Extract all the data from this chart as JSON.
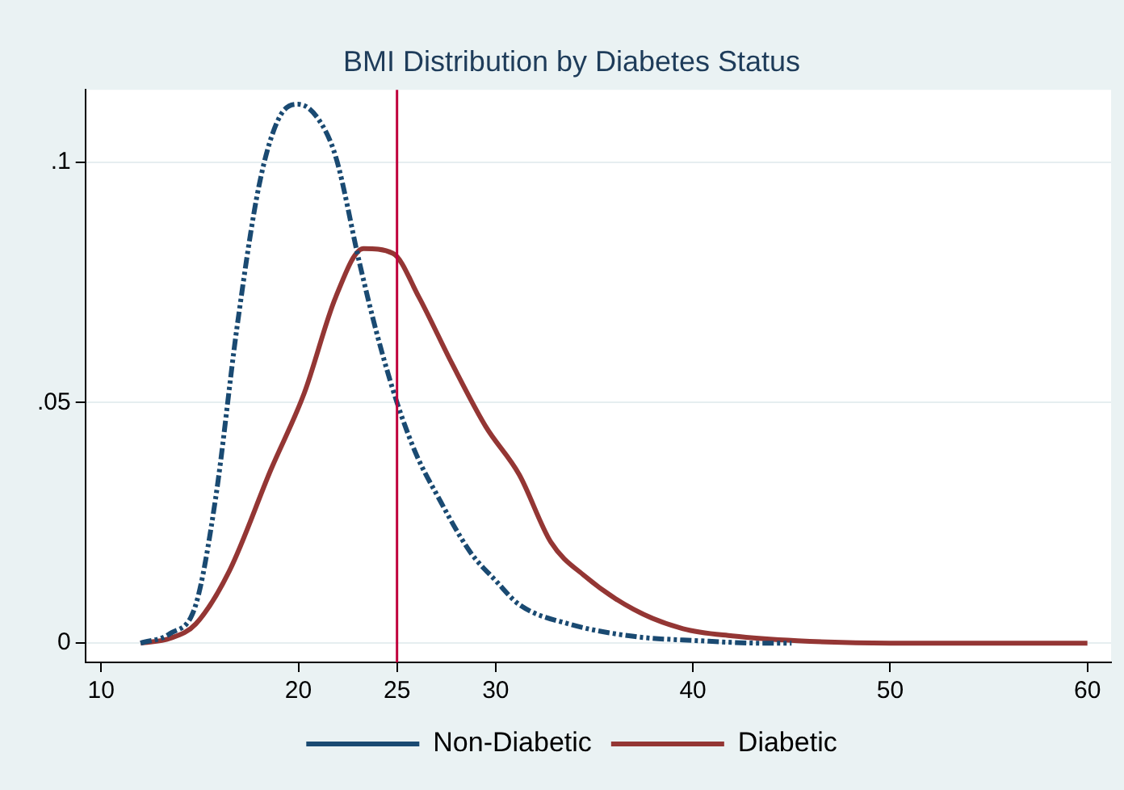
{
  "chart_data": {
    "type": "line",
    "title": "BMI Distribution by Diabetes Status",
    "xlim": [
      9.2,
      61.2
    ],
    "xticks": [
      10,
      20,
      25,
      30,
      40,
      50,
      60
    ],
    "ylim": [
      -0.004,
      0.115
    ],
    "yticks": [
      {
        "value": 0,
        "label": "0"
      },
      {
        "value": 0.05,
        "label": ".05"
      },
      {
        "value": 0.1,
        "label": ".1"
      }
    ],
    "grid": "y",
    "legend": "bottom",
    "marker": "none",
    "ref_lines": [
      {
        "axis": "x",
        "value": 25,
        "color": "#c0003c"
      }
    ],
    "series": [
      {
        "name": "Non-Diabetic",
        "color": "#1a4a72",
        "line_style": "dashed",
        "x": [
          12,
          13.5,
          14.8,
          15.8,
          16.9,
          18,
          19,
          20,
          21,
          21.9,
          23.1,
          24,
          25,
          26,
          27,
          28.7,
          30,
          31.2,
          33.7,
          37,
          40.3,
          43.5,
          45
        ],
        "values": [
          0,
          0.002,
          0.008,
          0.03,
          0.066,
          0.095,
          0.109,
          0.112,
          0.109,
          0.101,
          0.079,
          0.064,
          0.05,
          0.039,
          0.031,
          0.019,
          0.013,
          0.008,
          0.004,
          0.0014,
          0.0005,
          0,
          0
        ]
      },
      {
        "name": "Diabetic",
        "color": "#943634",
        "line_style": "solid",
        "x": [
          12,
          13.5,
          14.8,
          16.5,
          18.6,
          20.3,
          21.9,
          23.3,
          24.8,
          26.1,
          27.8,
          29.5,
          31.2,
          32.8,
          34.5,
          37,
          39.5,
          42,
          45.3,
          50,
          60
        ],
        "values": [
          0,
          0.001,
          0.004,
          0.015,
          0.036,
          0.052,
          0.072,
          0.082,
          0.081,
          0.072,
          0.058,
          0.045,
          0.035,
          0.021,
          0.014,
          0.007,
          0.003,
          0.0015,
          0.0005,
          0,
          0
        ]
      }
    ]
  }
}
